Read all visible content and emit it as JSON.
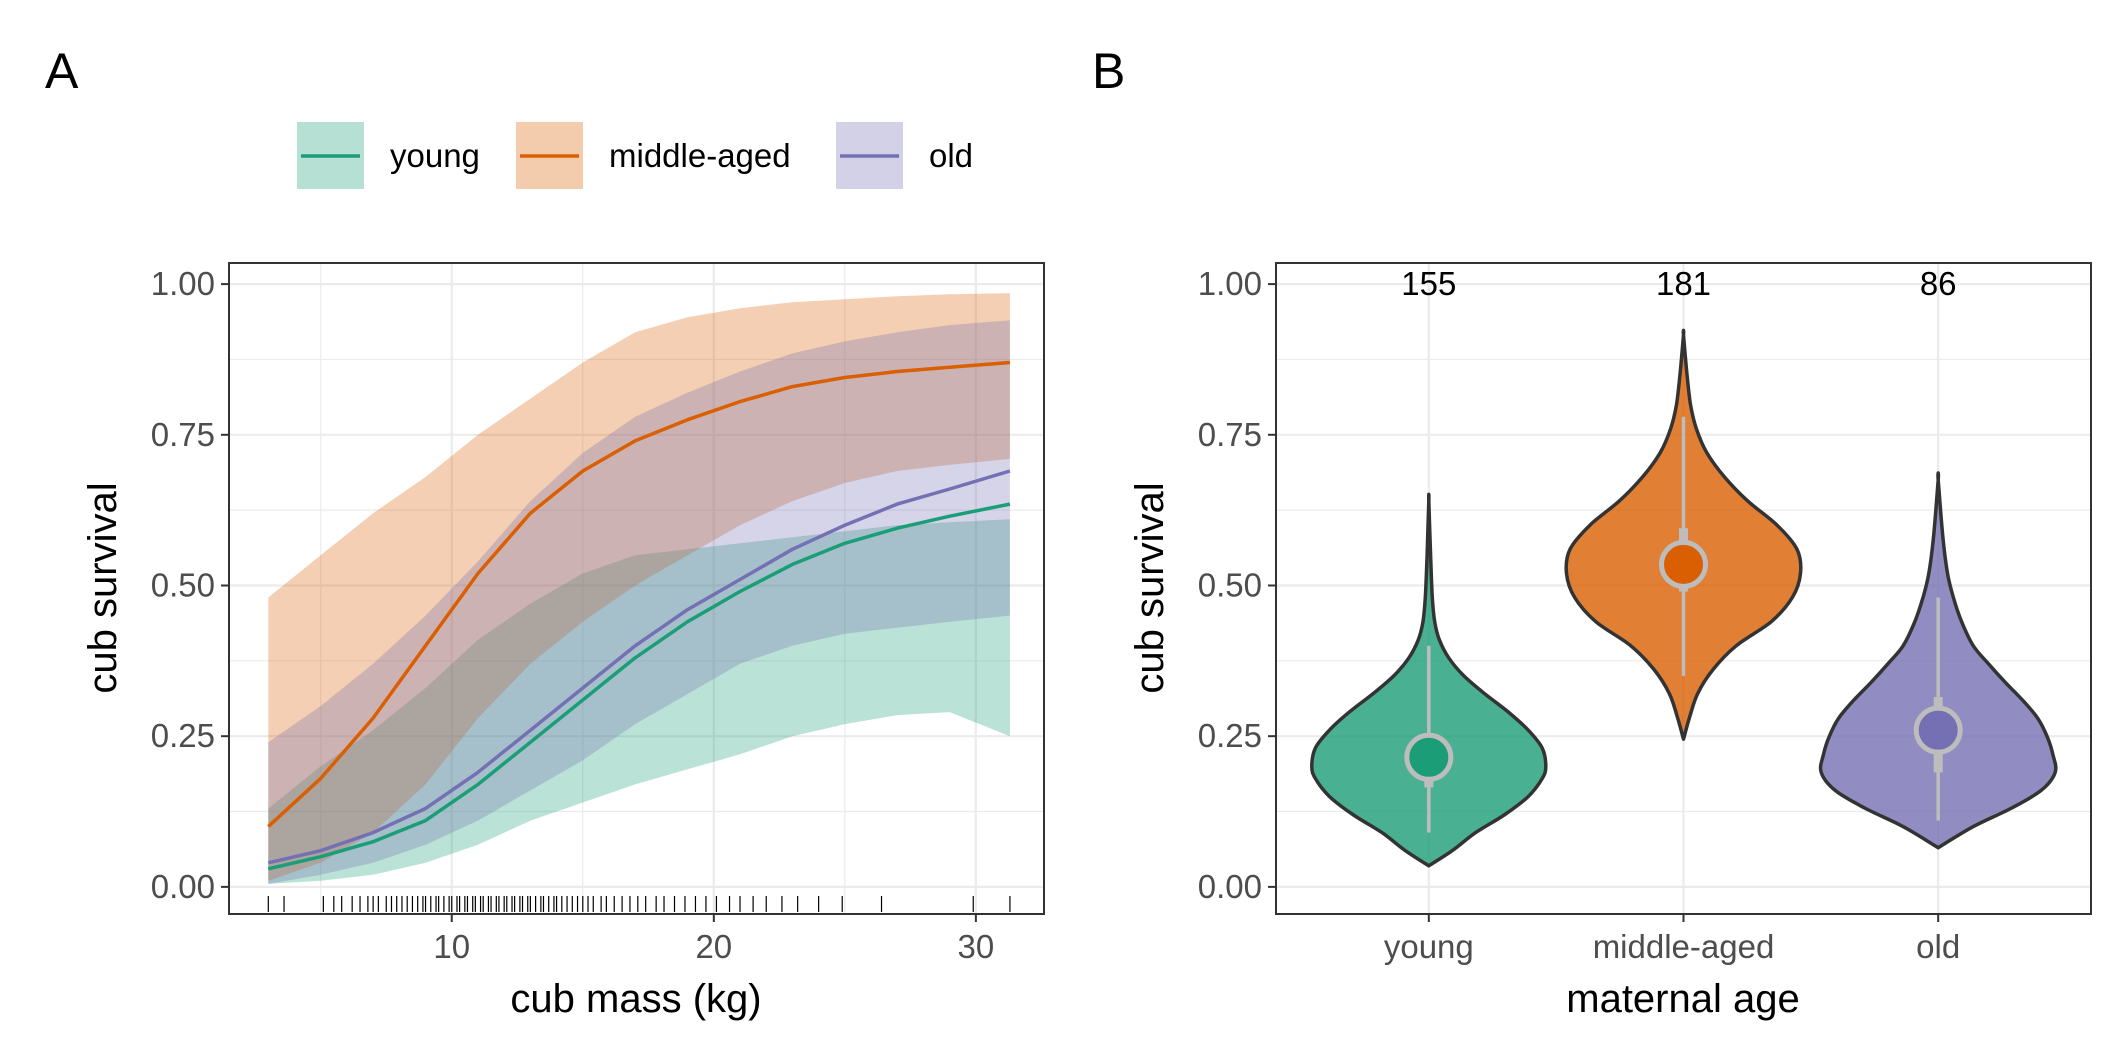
{
  "panel_labels": {
    "a": "A",
    "b": "B"
  },
  "colors": {
    "young": "#1b9e77",
    "middle-aged": "#d95f02",
    "old": "#7570b3",
    "grid": "#ebebeb",
    "panel_border": "#333333",
    "summary": "#bdbdbd"
  },
  "legend": {
    "items": [
      {
        "key": "young",
        "label": "young"
      },
      {
        "key": "middle-aged",
        "label": "middle-aged"
      },
      {
        "key": "old",
        "label": "old"
      }
    ]
  },
  "chart_data": [
    {
      "type": "line",
      "panel": "A",
      "xlabel": "cub mass (kg)",
      "ylabel": "cub survival",
      "xlim": [
        1.5,
        32.6
      ],
      "ylim": [
        -0.045,
        1.035
      ],
      "xticks": [
        10,
        20,
        30
      ],
      "yticks": [
        0,
        0.25,
        0.5,
        0.75,
        1.0
      ],
      "ytick_labels": [
        "0.00",
        "0.25",
        "0.50",
        "0.75",
        "1.00"
      ],
      "grid": true,
      "legend_position": "top",
      "x": [
        3.0,
        5.0,
        7.0,
        9.0,
        11.0,
        13.0,
        15.0,
        17.0,
        19.0,
        21.0,
        23.0,
        25.0,
        27.0,
        29.0,
        31.3
      ],
      "series": [
        {
          "name": "young",
          "key": "young",
          "values": [
            0.03,
            0.05,
            0.075,
            0.11,
            0.17,
            0.24,
            0.31,
            0.38,
            0.44,
            0.49,
            0.535,
            0.57,
            0.595,
            0.615,
            0.635
          ],
          "lower": [
            0.005,
            0.01,
            0.02,
            0.04,
            0.07,
            0.11,
            0.14,
            0.17,
            0.195,
            0.22,
            0.25,
            0.27,
            0.285,
            0.29,
            0.25
          ],
          "upper": [
            0.13,
            0.2,
            0.26,
            0.33,
            0.41,
            0.47,
            0.52,
            0.55,
            0.56,
            0.57,
            0.58,
            0.59,
            0.6,
            0.605,
            0.61
          ]
        },
        {
          "name": "middle-aged",
          "key": "middle-aged",
          "values": [
            0.1,
            0.18,
            0.28,
            0.4,
            0.52,
            0.62,
            0.69,
            0.74,
            0.775,
            0.805,
            0.83,
            0.845,
            0.855,
            0.862,
            0.87
          ],
          "lower": [
            0.01,
            0.04,
            0.09,
            0.17,
            0.28,
            0.37,
            0.44,
            0.5,
            0.55,
            0.6,
            0.64,
            0.67,
            0.69,
            0.7,
            0.71
          ],
          "upper": [
            0.48,
            0.55,
            0.62,
            0.68,
            0.75,
            0.81,
            0.87,
            0.92,
            0.945,
            0.96,
            0.97,
            0.975,
            0.98,
            0.983,
            0.985
          ]
        },
        {
          "name": "old",
          "key": "old",
          "values": [
            0.04,
            0.06,
            0.09,
            0.13,
            0.19,
            0.26,
            0.33,
            0.4,
            0.46,
            0.51,
            0.56,
            0.6,
            0.635,
            0.66,
            0.69
          ],
          "lower": [
            0.005,
            0.02,
            0.04,
            0.07,
            0.11,
            0.16,
            0.21,
            0.27,
            0.32,
            0.37,
            0.4,
            0.42,
            0.43,
            0.44,
            0.45
          ],
          "upper": [
            0.24,
            0.3,
            0.37,
            0.45,
            0.54,
            0.64,
            0.72,
            0.78,
            0.82,
            0.855,
            0.885,
            0.905,
            0.92,
            0.932,
            0.94
          ]
        }
      ],
      "rug_x": [
        3.0,
        3.6,
        5.1,
        5.5,
        5.8,
        6.2,
        6.5,
        6.8,
        7.0,
        7.2,
        7.5,
        7.7,
        7.9,
        8.1,
        8.3,
        8.5,
        8.7,
        8.9,
        9.0,
        9.2,
        9.4,
        9.5,
        9.7,
        9.9,
        10.0,
        10.2,
        10.3,
        10.5,
        10.6,
        10.8,
        10.9,
        11.1,
        11.2,
        11.4,
        11.5,
        11.7,
        11.8,
        12.0,
        12.1,
        12.3,
        12.4,
        12.6,
        12.7,
        12.9,
        13.0,
        13.2,
        13.4,
        13.5,
        13.7,
        13.9,
        14.0,
        14.2,
        14.4,
        14.6,
        14.8,
        15.0,
        15.2,
        15.4,
        15.7,
        15.9,
        16.2,
        16.5,
        16.8,
        17.1,
        17.4,
        17.8,
        18.1,
        18.5,
        18.9,
        19.3,
        19.7,
        20.1,
        20.6,
        21.0,
        21.5,
        22.0,
        22.6,
        23.2,
        24.0,
        24.9,
        26.4,
        29.9,
        31.3
      ]
    },
    {
      "type": "violin",
      "panel": "B",
      "xlabel": "maternal age",
      "ylabel": "cub survival",
      "categories": [
        "young",
        "middle-aged",
        "old"
      ],
      "ylim": [
        -0.045,
        1.035
      ],
      "yticks": [
        0,
        0.25,
        0.5,
        0.75,
        1.0
      ],
      "ytick_labels": [
        "0.00",
        "0.25",
        "0.50",
        "0.75",
        "1.00"
      ],
      "grid": true,
      "counts": [
        "155",
        "181",
        "86"
      ],
      "series": [
        {
          "name": "young",
          "key": "young",
          "median": 0.215,
          "q_inner": [
            0.165,
            0.255
          ],
          "q_outer": [
            0.09,
            0.4
          ],
          "density": [
            [
              0.035,
              0.0
            ],
            [
              0.06,
              0.2
            ],
            [
              0.09,
              0.4
            ],
            [
              0.12,
              0.65
            ],
            [
              0.15,
              0.85
            ],
            [
              0.18,
              0.97
            ],
            [
              0.2,
              1.0
            ],
            [
              0.23,
              0.97
            ],
            [
              0.26,
              0.85
            ],
            [
              0.29,
              0.68
            ],
            [
              0.32,
              0.48
            ],
            [
              0.35,
              0.3
            ],
            [
              0.38,
              0.17
            ],
            [
              0.41,
              0.09
            ],
            [
              0.44,
              0.05
            ],
            [
              0.48,
              0.03
            ],
            [
              0.55,
              0.015
            ],
            [
              0.64,
              0.0
            ]
          ]
        },
        {
          "name": "middle-aged",
          "key": "middle-aged",
          "median": 0.535,
          "q_inner": [
            0.49,
            0.595
          ],
          "q_outer": [
            0.35,
            0.78
          ],
          "density": [
            [
              0.245,
              0.0
            ],
            [
              0.28,
              0.05
            ],
            [
              0.32,
              0.12
            ],
            [
              0.36,
              0.25
            ],
            [
              0.4,
              0.45
            ],
            [
              0.44,
              0.75
            ],
            [
              0.48,
              0.93
            ],
            [
              0.52,
              1.0
            ],
            [
              0.56,
              0.97
            ],
            [
              0.6,
              0.8
            ],
            [
              0.64,
              0.55
            ],
            [
              0.68,
              0.35
            ],
            [
              0.72,
              0.2
            ],
            [
              0.76,
              0.11
            ],
            [
              0.8,
              0.06
            ],
            [
              0.85,
              0.03
            ],
            [
              0.915,
              0.0
            ]
          ]
        },
        {
          "name": "old",
          "key": "old",
          "median": 0.26,
          "q_inner": [
            0.19,
            0.315
          ],
          "q_outer": [
            0.11,
            0.48
          ],
          "density": [
            [
              0.065,
              0.0
            ],
            [
              0.1,
              0.3
            ],
            [
              0.13,
              0.62
            ],
            [
              0.16,
              0.88
            ],
            [
              0.19,
              1.0
            ],
            [
              0.22,
              0.98
            ],
            [
              0.25,
              0.93
            ],
            [
              0.28,
              0.85
            ],
            [
              0.31,
              0.72
            ],
            [
              0.34,
              0.57
            ],
            [
              0.37,
              0.43
            ],
            [
              0.4,
              0.3
            ],
            [
              0.44,
              0.2
            ],
            [
              0.48,
              0.13
            ],
            [
              0.52,
              0.08
            ],
            [
              0.58,
              0.04
            ],
            [
              0.675,
              0.0
            ]
          ]
        }
      ]
    }
  ]
}
